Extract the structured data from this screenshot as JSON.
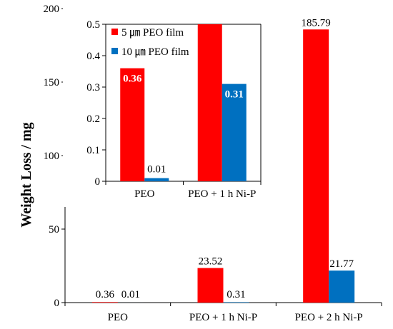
{
  "chart_data": [
    {
      "type": "bar",
      "categories": [
        "PEO",
        "PEO + 1 h Ni-P",
        "PEO + 2 h Ni-P"
      ],
      "series": [
        {
          "values": [
            0.36,
            23.52,
            185.79
          ],
          "data_labels": [
            "0.36",
            "23.52",
            "185.79"
          ]
        },
        {
          "values": [
            0.01,
            0.31,
            21.77
          ],
          "data_labels": [
            "0.01",
            "0.31",
            "21.77"
          ]
        }
      ],
      "ylabel": "Weight Loss / mg",
      "ylim": [
        0,
        200
      ],
      "yticks": [
        "0",
        "50",
        "100",
        "150",
        "200"
      ],
      "grid": false
    },
    {
      "type": "bar",
      "categories": [
        "PEO",
        "PEO + 1 h Ni-P"
      ],
      "series": [
        {
          "name": "5 ㎛ PEO film",
          "values": [
            0.36,
            0.5
          ],
          "data_labels": [
            "0.36",
            ""
          ]
        },
        {
          "name": "10 ㎛ PEO film",
          "values": [
            0.01,
            0.31
          ],
          "data_labels": [
            "0.01",
            "0.31"
          ]
        }
      ],
      "ylim": [
        0,
        0.5
      ],
      "yticks": [
        "0",
        "0.1",
        "0.2",
        "0.3",
        "0.4",
        "0.5"
      ],
      "legend": "top-left",
      "grid": false
    }
  ],
  "colors": {
    "series1": "#ff0000",
    "series2": "#0070c0"
  }
}
